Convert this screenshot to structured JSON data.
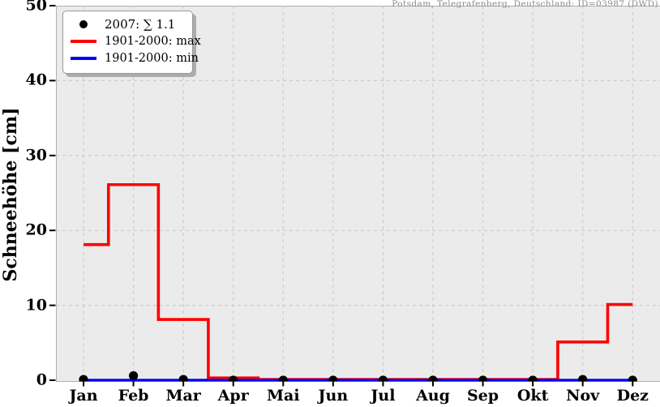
{
  "header": {
    "title": "Potsdam, Telegrafenberg, Deutschland: ID=03987 (DWD)"
  },
  "axes": {
    "ylabel": "Schneehöhe [cm]"
  },
  "legend": {
    "items": [
      {
        "marker": "dot",
        "color": "#000000",
        "label": "2007: ∑ 1.1"
      },
      {
        "marker": "line",
        "color": "#ff0000",
        "label": "1901-2000: max"
      },
      {
        "marker": "line",
        "color": "#0000ff",
        "label": "1901-2000: min"
      }
    ]
  },
  "colors": {
    "plot_background": "#ebebeb",
    "grid": "#c8c8c8",
    "spine": "#b0b0b0",
    "tick": "#000000",
    "max_line": "#ff0000",
    "min_line": "#0000ff",
    "dots": "#000000",
    "title_text": "#8a8a8a"
  },
  "chart_data": {
    "type": "line",
    "title": "Potsdam, Telegrafenberg, Deutschland: ID=03987 (DWD)",
    "ylabel": "Schneehöhe [cm]",
    "categories": [
      "Jan",
      "Feb",
      "Mar",
      "Apr",
      "Mai",
      "Jun",
      "Jul",
      "Aug",
      "Sep",
      "Okt",
      "Nov",
      "Dez"
    ],
    "series": [
      {
        "name": "2007",
        "type": "scatter",
        "color": "#000000",
        "values": [
          0.1,
          0.6,
          0.1,
          0,
          0,
          0,
          0,
          0,
          0,
          0,
          0.1,
          0
        ]
      },
      {
        "name": "1901-2000: max",
        "type": "step-mid",
        "color": "#ff0000",
        "values": [
          18,
          26,
          8,
          0.2,
          0,
          0,
          0,
          0,
          0,
          0,
          5,
          10
        ]
      },
      {
        "name": "1901-2000: min",
        "type": "step-mid",
        "color": "#0000ff",
        "values": [
          0,
          0,
          0,
          0,
          0,
          0,
          0,
          0,
          0,
          0,
          0,
          0
        ]
      }
    ],
    "annotation_sum_2007": 1.1,
    "ylim": [
      0,
      50
    ],
    "yticks": [
      0,
      10,
      20,
      30,
      40,
      50
    ],
    "grid": true,
    "grid_style": "dashed",
    "legend_position": "upper-left"
  }
}
